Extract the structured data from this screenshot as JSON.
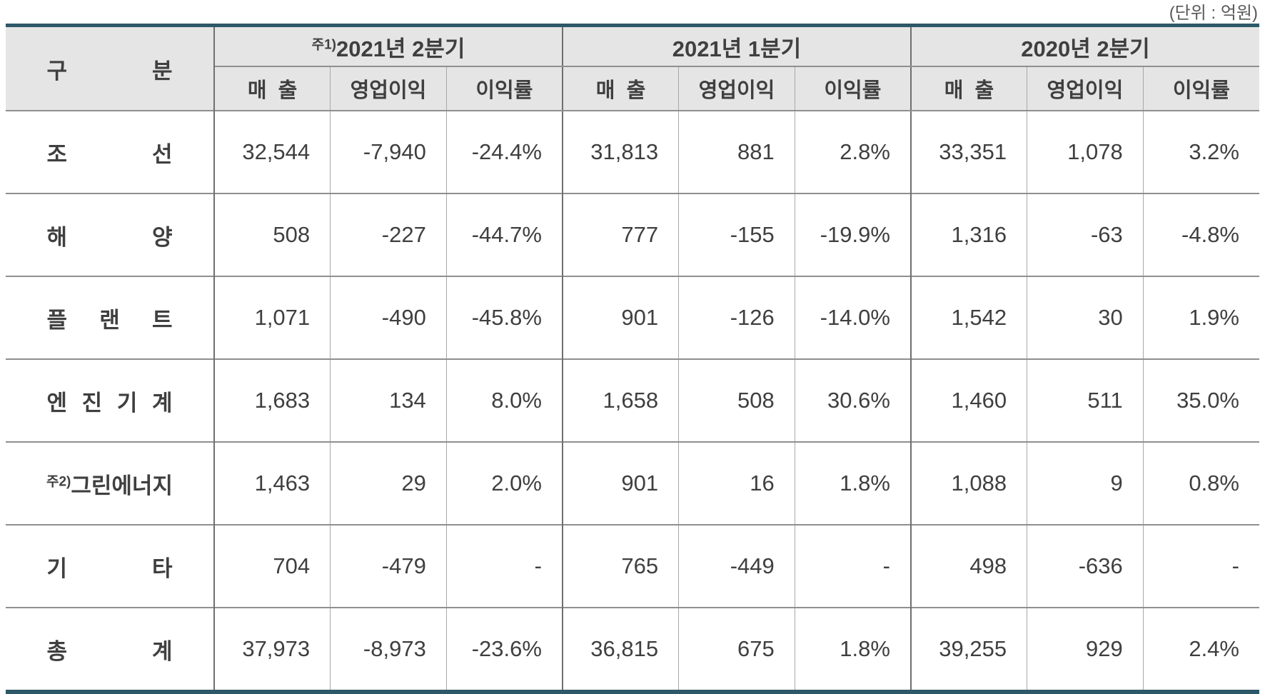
{
  "unit_note": "(단위 : 억원)",
  "table": {
    "category_header": {
      "chars": [
        "구",
        "분"
      ]
    },
    "column_groups": [
      {
        "prefix": "주1)",
        "label": "2021년 2분기"
      },
      {
        "prefix": "",
        "label": "2021년 1분기"
      },
      {
        "prefix": "",
        "label": "2020년 2분기"
      }
    ],
    "sub_columns": [
      "매  출",
      "영업이익",
      "이익률"
    ],
    "rows": [
      {
        "prefix": "",
        "label": "조선",
        "spread": true,
        "values": [
          "32,544",
          "-7,940",
          "-24.4%",
          "31,813",
          "881",
          "2.8%",
          "33,351",
          "1,078",
          "3.2%"
        ]
      },
      {
        "prefix": "",
        "label": "해양",
        "spread": true,
        "values": [
          "508",
          "-227",
          "-44.7%",
          "777",
          "-155",
          "-19.9%",
          "1,316",
          "-63",
          "-4.8%"
        ]
      },
      {
        "prefix": "",
        "label": "플랜트",
        "spread": true,
        "values": [
          "1,071",
          "-490",
          "-45.8%",
          "901",
          "-126",
          "-14.0%",
          "1,542",
          "30",
          "1.9%"
        ]
      },
      {
        "prefix": "",
        "label": "엔진기계",
        "spread": true,
        "values": [
          "1,683",
          "134",
          "8.0%",
          "1,658",
          "508",
          "30.6%",
          "1,460",
          "511",
          "35.0%"
        ]
      },
      {
        "prefix": "주2)",
        "label": "그린에너지",
        "spread": false,
        "values": [
          "1,463",
          "29",
          "2.0%",
          "901",
          "16",
          "1.8%",
          "1,088",
          "9",
          "0.8%"
        ]
      },
      {
        "prefix": "",
        "label": "기타",
        "spread": true,
        "values": [
          "704",
          "-479",
          "-",
          "765",
          "-449",
          "-",
          "498",
          "-636",
          "-"
        ]
      },
      {
        "prefix": "",
        "label": "총계",
        "spread": true,
        "values": [
          "37,973",
          "-8,973",
          "-23.6%",
          "36,815",
          "675",
          "1.8%",
          "39,255",
          "929",
          "2.4%"
        ]
      }
    ]
  },
  "colors": {
    "accent_teal": "#2d5868",
    "header_bg": "#e5e5e5",
    "text": "#3f3f3f",
    "unit_text": "#58595b"
  },
  "chart_data": {
    "type": "table",
    "unit": "억원",
    "column_groups": [
      "2021년 2분기",
      "2021년 1분기",
      "2020년 2분기"
    ],
    "sub_columns": [
      "매출",
      "영업이익",
      "이익률"
    ],
    "row_labels": [
      "조선",
      "해양",
      "플랜트",
      "엔진기계",
      "그린에너지",
      "기타",
      "총계"
    ],
    "rows": [
      [
        32544,
        -7940,
        "-24.4%",
        31813,
        881,
        "2.8%",
        33351,
        1078,
        "3.2%"
      ],
      [
        508,
        -227,
        "-44.7%",
        777,
        -155,
        "-19.9%",
        1316,
        -63,
        "-4.8%"
      ],
      [
        1071,
        -490,
        "-45.8%",
        901,
        -126,
        "-14.0%",
        1542,
        30,
        "1.9%"
      ],
      [
        1683,
        134,
        "8.0%",
        1658,
        508,
        "30.6%",
        1460,
        511,
        "35.0%"
      ],
      [
        1463,
        29,
        "2.0%",
        901,
        16,
        "1.8%",
        1088,
        9,
        "0.8%"
      ],
      [
        704,
        -479,
        "-",
        765,
        -449,
        "-",
        498,
        -636,
        "-"
      ],
      [
        37973,
        -8973,
        "-23.6%",
        36815,
        675,
        "1.8%",
        39255,
        929,
        "2.4%"
      ]
    ],
    "footnote_markers": [
      "주1)",
      "주2)"
    ]
  }
}
